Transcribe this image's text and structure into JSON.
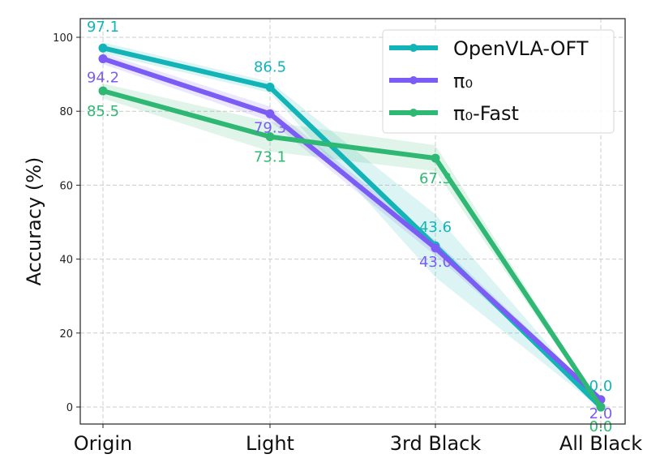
{
  "chart_data": {
    "type": "line",
    "title": "",
    "xlabel": "",
    "ylabel": "Accuracy (%)",
    "categories": [
      "Origin",
      "Light",
      "3rd Black",
      "All Black"
    ],
    "ylim": [
      -4.5,
      105
    ],
    "yticks": [
      0,
      20,
      40,
      60,
      80,
      100
    ],
    "grid": true,
    "legend_position": "top-right",
    "series": [
      {
        "name": "OpenVLA-OFT",
        "color": "#12b4b8",
        "values": [
          97.1,
          86.5,
          43.6,
          0.0
        ],
        "band": [
          1.5,
          1.5,
          8.5,
          0.5
        ],
        "labels": [
          "97.1",
          "86.5",
          "43.6",
          "0.0"
        ]
      },
      {
        "name": "π₀",
        "color": "#7b5cf5",
        "values": [
          94.2,
          79.3,
          43.0,
          2.0
        ],
        "band": [
          1.5,
          2.0,
          2.0,
          0.5
        ],
        "labels": [
          "94.2",
          "79.3",
          "43.0",
          "2.0"
        ]
      },
      {
        "name": "π₀-Fast",
        "color": "#2fb874",
        "values": [
          85.5,
          73.1,
          67.3,
          0.0
        ],
        "band": [
          2.0,
          4.0,
          3.5,
          0.5
        ],
        "labels": [
          "85.5",
          "73.1",
          "67.3",
          "0.0"
        ]
      }
    ]
  }
}
